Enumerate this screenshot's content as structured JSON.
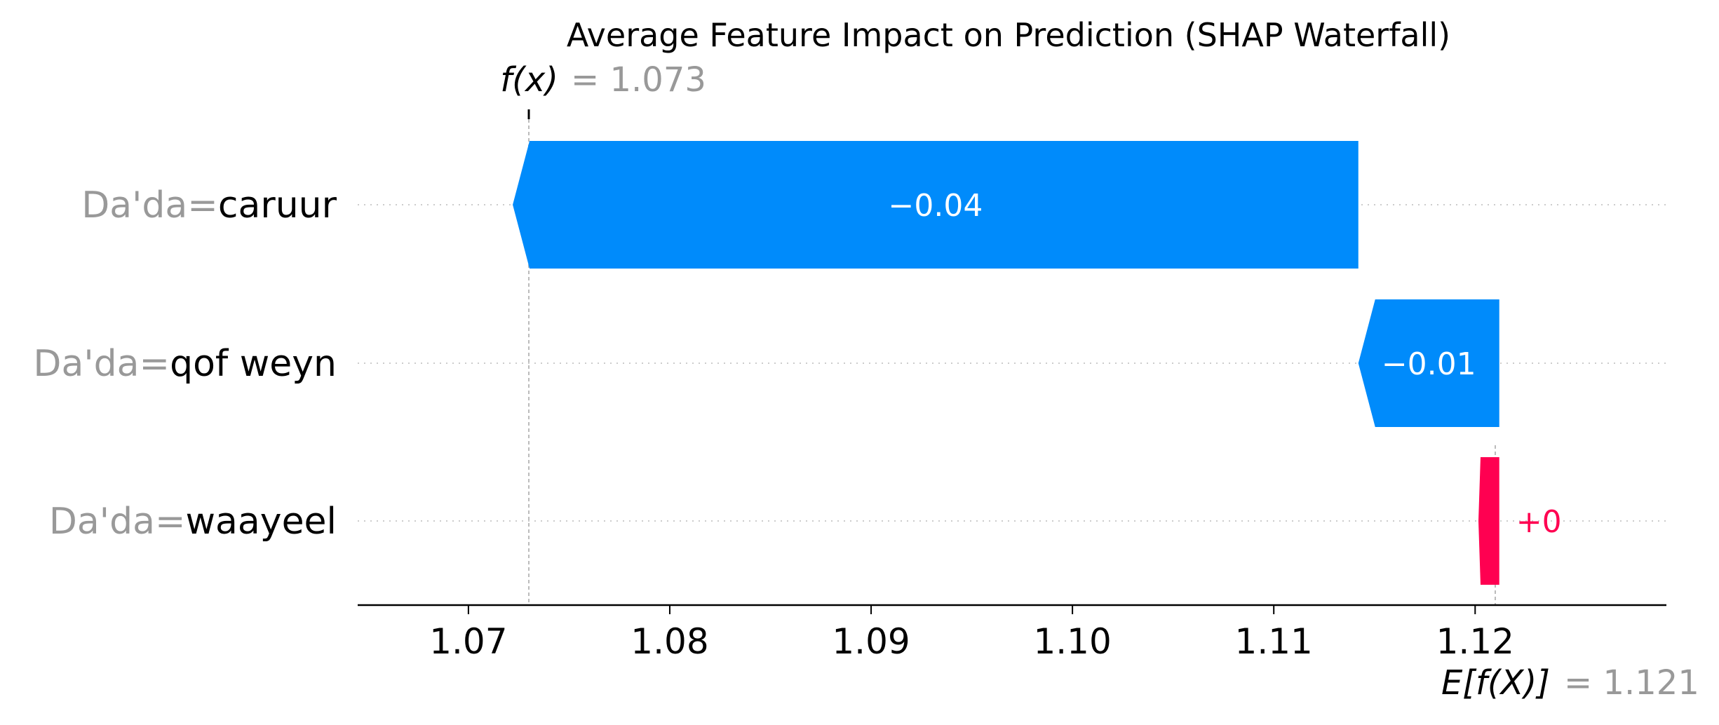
{
  "chart_data": {
    "type": "waterfall",
    "title": "Average Feature Impact on Prediction (SHAP Waterfall)",
    "base_value": 1.121,
    "final_value": 1.073,
    "fx_label": "f(x)",
    "fx_value_text": "= 1.073",
    "efx_label": "E[f(X)]",
    "efx_value_text": "= 1.121",
    "features": [
      {
        "name": "Da'da=",
        "value": "caruur",
        "shap": -0.042,
        "label": "−0.04"
      },
      {
        "name": "Da'da=",
        "value": "qof weyn",
        "shap": -0.007,
        "label": "−0.01"
      },
      {
        "name": "Da'da=",
        "value": "waayeel",
        "shap": 0.0002,
        "label": "+0"
      }
    ],
    "xlim": [
      1.0645,
      1.1295
    ],
    "x_ticks": [
      1.07,
      1.08,
      1.09,
      1.1,
      1.11,
      1.12
    ],
    "x_tick_labels": [
      "1.07",
      "1.08",
      "1.09",
      "1.10",
      "1.11",
      "1.12"
    ],
    "colors": {
      "negative": "#008bfb",
      "positive": "#ff0051",
      "muted_text": "#999999",
      "grid": "#cccccc"
    }
  }
}
